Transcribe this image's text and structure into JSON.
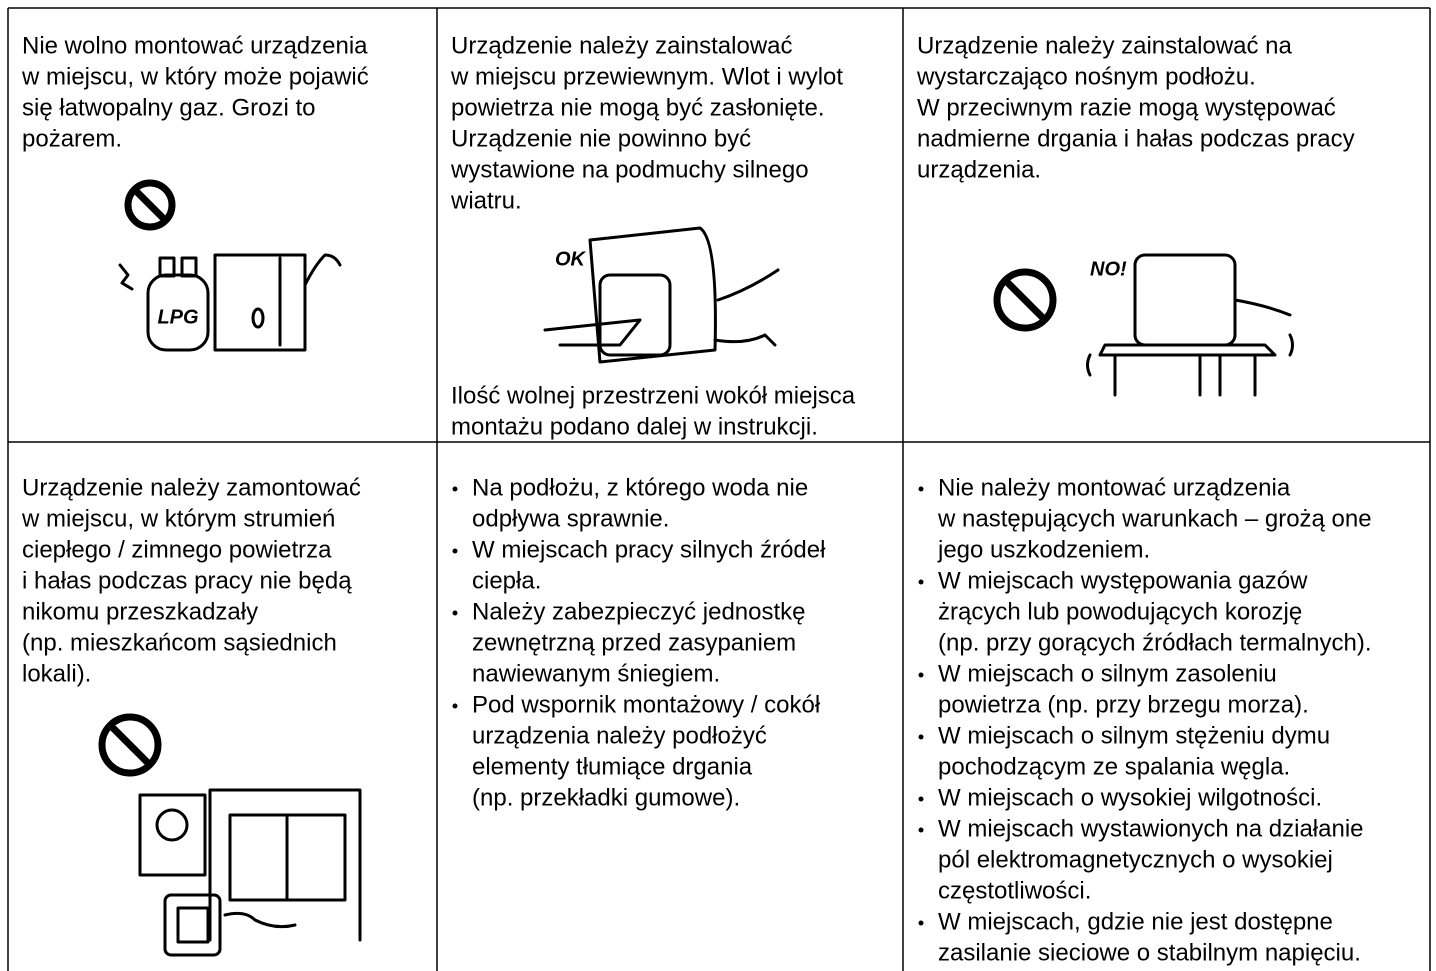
{
  "table": {
    "rows": [
      [
        {
          "lines": [
            "Nie wolno montować urządzenia",
            "w miejscu, w który może pojawić",
            "się łatwopalny gaz. Grozi to",
            "pożarem."
          ],
          "figure_label": "LPG"
        },
        {
          "lines": [
            "Urządzenie należy zainstalować",
            "w miejscu przewiewnym. Wlot i wylot",
            "powietrza nie mogą być zasłonięte.",
            "Urządzenie nie powinno być",
            "wystawione na podmuchy silnego",
            "wiatru."
          ],
          "figure_label": "OK",
          "note_lines": [
            "Ilość wolnej przestrzeni wokół miejsca",
            "montażu podano dalej w instrukcji."
          ]
        },
        {
          "lines": [
            "Urządzenie należy zainstalować na",
            "wystarczająco nośnym podłożu.",
            "W przeciwnym razie mogą występować",
            "nadmierne drgania i hałas podczas pracy",
            "urządzenia."
          ],
          "figure_label": "NO!"
        }
      ],
      [
        {
          "lines": [
            "Urządzenie należy zamontować",
            "w miejscu, w którym strumień",
            "ciepłego / zimnego powietrza",
            "i hałas podczas pracy nie będą",
            "nikomu przeszkadzały",
            "(np. mieszkańcom sąsiednich",
            "lokali)."
          ]
        },
        {
          "items": [
            [
              "Na podłożu, z którego woda nie",
              "odpływa sprawnie."
            ],
            [
              "W miejscach pracy silnych źródeł",
              "ciepła."
            ],
            [
              "Należy zabezpieczyć jednostkę",
              "zewnętrzną przed zasypaniem",
              "nawiewanym śniegiem."
            ],
            [
              "Pod wspornik montażowy / cokół",
              "urządzenia należy podłożyć",
              "elementy tłumiące drgania",
              "(np. przekładki gumowe)."
            ]
          ]
        },
        {
          "items": [
            [
              "Nie należy montować urządzenia",
              "w następujących warunkach – grożą one",
              "jego uszkodzeniem."
            ],
            [
              "W miejscach występowania gazów",
              "żrących lub powodujących korozję",
              "(np. przy gorących źródłach termalnych)."
            ],
            [
              "W miejscach o silnym zasoleniu",
              "powietrza (np. przy brzegu morza)."
            ],
            [
              "W miejscach o silnym stężeniu dymu",
              "pochodzącym ze spalania węgla."
            ],
            [
              "W miejscach o wysokiej wilgotności."
            ],
            [
              "W miejscach wystawionych na działanie",
              "pól elektromagnetycznych o wysokiej",
              "częstotliwości."
            ],
            [
              "W miejscach, gdzie nie jest dostępne",
              "zasilanie sieciowe o stabilnym napięciu."
            ]
          ]
        }
      ]
    ]
  }
}
